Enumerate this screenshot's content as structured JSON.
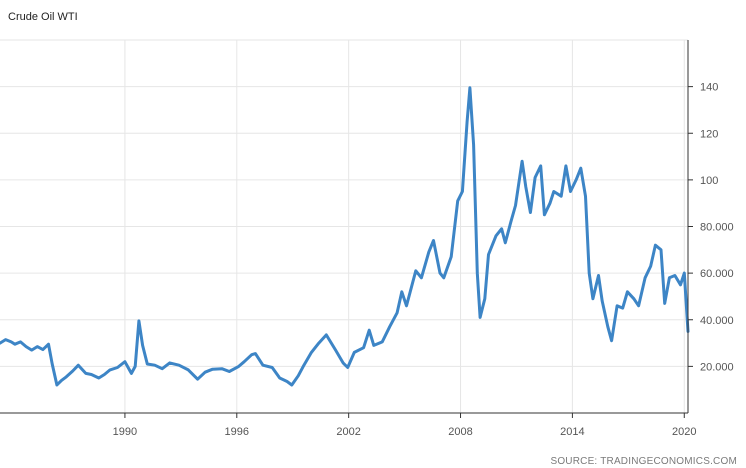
{
  "header": {
    "title": "Crude Oil WTI"
  },
  "footer": {
    "source": "SOURCE: TRADINGECONOMICS.COM"
  },
  "colors": {
    "line": "#3d85c6",
    "grid": "#e6e6e6",
    "axis": "#333333"
  },
  "chart_data": {
    "type": "line",
    "title": "Crude Oil WTI",
    "xlabel": "",
    "ylabel": "",
    "xlim": [
      1983.3,
      2020.2
    ],
    "ylim": [
      0,
      160
    ],
    "x_ticks": [
      1990,
      1996,
      2002,
      2008,
      2014,
      2020
    ],
    "x_tick_labels": [
      "1990",
      "1996",
      "2002",
      "2008",
      "2014",
      "2020"
    ],
    "y_ticks": [
      20,
      40,
      60,
      80,
      100,
      120,
      140
    ],
    "y_tick_labels": [
      "20.000",
      "40.000",
      "60.000",
      "80.000",
      "100",
      "120",
      "140"
    ],
    "grid": true,
    "legend": "none",
    "series": [
      {
        "points": [
          [
            1983.3,
            30
          ],
          [
            1983.6,
            31.5
          ],
          [
            1983.9,
            30.5
          ],
          [
            1984.1,
            29.5
          ],
          [
            1984.4,
            30.5
          ],
          [
            1984.7,
            28.5
          ],
          [
            1985.0,
            27
          ],
          [
            1985.3,
            28.5
          ],
          [
            1985.6,
            27.2
          ],
          [
            1985.9,
            29.5
          ],
          [
            1986.1,
            21
          ],
          [
            1986.35,
            12
          ],
          [
            1986.6,
            14
          ],
          [
            1986.85,
            15.5
          ],
          [
            1987.2,
            18
          ],
          [
            1987.5,
            20.5
          ],
          [
            1987.9,
            17
          ],
          [
            1988.2,
            16.5
          ],
          [
            1988.6,
            15
          ],
          [
            1988.9,
            16.5
          ],
          [
            1989.2,
            18.5
          ],
          [
            1989.6,
            19.5
          ],
          [
            1990.0,
            22
          ],
          [
            1990.35,
            17
          ],
          [
            1990.55,
            20
          ],
          [
            1990.75,
            39.5
          ],
          [
            1990.95,
            29
          ],
          [
            1991.2,
            21
          ],
          [
            1991.6,
            20.5
          ],
          [
            1992.0,
            19
          ],
          [
            1992.4,
            21.5
          ],
          [
            1992.9,
            20.5
          ],
          [
            1993.4,
            18.5
          ],
          [
            1993.9,
            14.5
          ],
          [
            1994.3,
            17.5
          ],
          [
            1994.7,
            18.8
          ],
          [
            1995.2,
            19
          ],
          [
            1995.6,
            17.8
          ],
          [
            1996.1,
            20
          ],
          [
            1996.4,
            22
          ],
          [
            1996.8,
            25
          ],
          [
            1997.0,
            25.5
          ],
          [
            1997.4,
            20.5
          ],
          [
            1997.9,
            19.5
          ],
          [
            1998.3,
            15
          ],
          [
            1998.7,
            13.5
          ],
          [
            1998.95,
            12
          ],
          [
            1999.3,
            16
          ],
          [
            1999.6,
            20.5
          ],
          [
            2000.0,
            26
          ],
          [
            2000.4,
            30
          ],
          [
            2000.8,
            33.5
          ],
          [
            2001.3,
            27
          ],
          [
            2001.7,
            21.5
          ],
          [
            2001.95,
            19.5
          ],
          [
            2002.3,
            26
          ],
          [
            2002.8,
            28
          ],
          [
            2003.1,
            35.5
          ],
          [
            2003.35,
            29
          ],
          [
            2003.8,
            30.5
          ],
          [
            2004.2,
            37
          ],
          [
            2004.6,
            43
          ],
          [
            2004.85,
            52
          ],
          [
            2005.1,
            46
          ],
          [
            2005.6,
            61
          ],
          [
            2005.9,
            58
          ],
          [
            2006.3,
            69
          ],
          [
            2006.55,
            74
          ],
          [
            2006.9,
            60
          ],
          [
            2007.1,
            58
          ],
          [
            2007.5,
            67
          ],
          [
            2007.85,
            91
          ],
          [
            2008.1,
            95
          ],
          [
            2008.35,
            125
          ],
          [
            2008.5,
            139.5
          ],
          [
            2008.7,
            115
          ],
          [
            2008.9,
            60
          ],
          [
            2009.05,
            41
          ],
          [
            2009.3,
            49
          ],
          [
            2009.5,
            68
          ],
          [
            2009.9,
            76
          ],
          [
            2010.2,
            79
          ],
          [
            2010.4,
            73
          ],
          [
            2010.7,
            82
          ],
          [
            2010.95,
            89
          ],
          [
            2011.3,
            108
          ],
          [
            2011.5,
            97
          ],
          [
            2011.75,
            86
          ],
          [
            2012.0,
            101
          ],
          [
            2012.3,
            106
          ],
          [
            2012.5,
            85
          ],
          [
            2012.8,
            90
          ],
          [
            2013.0,
            95
          ],
          [
            2013.4,
            93
          ],
          [
            2013.65,
            106
          ],
          [
            2013.9,
            95
          ],
          [
            2014.2,
            100
          ],
          [
            2014.45,
            105
          ],
          [
            2014.7,
            93
          ],
          [
            2014.9,
            60
          ],
          [
            2015.1,
            49
          ],
          [
            2015.4,
            59
          ],
          [
            2015.6,
            48
          ],
          [
            2015.9,
            37
          ],
          [
            2016.1,
            31
          ],
          [
            2016.4,
            46
          ],
          [
            2016.7,
            45
          ],
          [
            2016.95,
            52
          ],
          [
            2017.3,
            49
          ],
          [
            2017.55,
            46
          ],
          [
            2017.9,
            58
          ],
          [
            2018.2,
            63
          ],
          [
            2018.45,
            72
          ],
          [
            2018.75,
            70
          ],
          [
            2018.95,
            47
          ],
          [
            2019.2,
            58
          ],
          [
            2019.5,
            59
          ],
          [
            2019.8,
            55
          ],
          [
            2020.0,
            60
          ],
          [
            2020.2,
            35
          ]
        ]
      }
    ]
  }
}
